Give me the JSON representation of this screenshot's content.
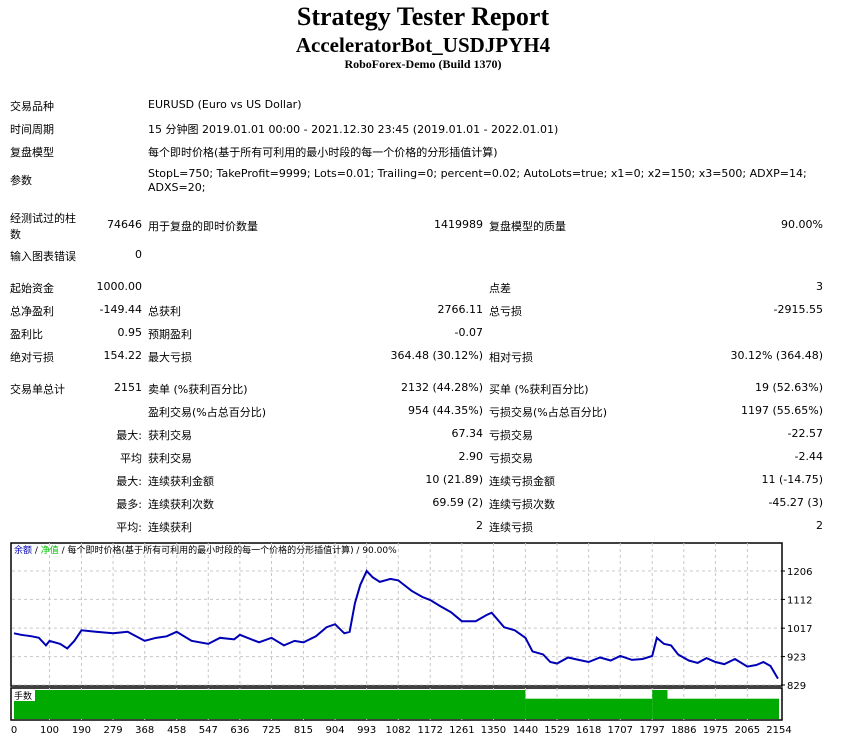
{
  "header": {
    "title": "Strategy Tester Report",
    "subtitle": "AcceleratorBot_USDJPYH4",
    "server": "RoboForex-Demo (Build 1370)"
  },
  "info": [
    {
      "label": "交易品种",
      "value": "EURUSD (Euro vs US Dollar)"
    },
    {
      "label": "时间周期",
      "value": "15 分钟图 2019.01.01 00:00 - 2021.12.30 23:45 (2019.01.01 - 2022.01.01)"
    },
    {
      "label": "复盘模型",
      "value": "每个即时价格(基于所有可利用的最小时段的每一个价格的分形插值计算)"
    },
    {
      "label": "参数",
      "value": "StopL=750; TakeProfit=9999; Lots=0.01; Trailing=0; percent=0.02; AutoLots=true; x1=0; x2=150; x3=500; ADXP=14;",
      "value2": "ADXS=20;"
    }
  ],
  "bars": {
    "label1": "经测试过的柱",
    "label2": "数",
    "value": "74646",
    "ticks_label": "用于复盘的即时价数量",
    "ticks_value": "1419989",
    "quality_label": "复盘模型的质量",
    "quality_value": "90.00%"
  },
  "errors": {
    "label": "输入图表错误",
    "value": "0"
  },
  "stats": [
    {
      "l1": "起始资金",
      "v1": "1000.00",
      "l2": "",
      "v2": "",
      "l3": "点差",
      "v3": "3"
    },
    {
      "l1": "总净盈利",
      "v1": "-149.44",
      "l2": "总获利",
      "v2": "2766.11",
      "l3": "总亏损",
      "v3": "-2915.55"
    },
    {
      "l1": "盈利比",
      "v1": "0.95",
      "l2": "预期盈利",
      "v2": "-0.07",
      "l3": "",
      "v3": ""
    },
    {
      "l1": "绝对亏损",
      "v1": "154.22",
      "l2": "最大亏损",
      "v2": "364.48 (30.12%)",
      "l3": "相对亏损",
      "v3": "30.12% (364.48)"
    }
  ],
  "trades": [
    {
      "l1": "交易单总计",
      "v1": "2151",
      "l2": "卖单 (%获利百分比)",
      "v2": "2132 (44.28%)",
      "l3": "买单 (%获利百分比)",
      "v3": "19 (52.63%)"
    },
    {
      "l1": "",
      "v1": "",
      "l2": "盈利交易(%占总百分比)",
      "v2": "954 (44.35%)",
      "l3": "亏损交易(%占总百分比)",
      "v3": "1197 (55.65%)"
    },
    {
      "l1": "",
      "v1": "最大:",
      "l2": "获利交易",
      "v2": "67.34",
      "l3": "亏损交易",
      "v3": "-22.57"
    },
    {
      "l1": "",
      "v1": "平均",
      "l2": "获利交易",
      "v2": "2.90",
      "l3": "亏损交易",
      "v3": "-2.44"
    },
    {
      "l1": "",
      "v1": "最大:",
      "l2": "连续获利金额",
      "v2": "10 (21.89)",
      "l3": "连续亏损金额",
      "v3": "11 (-14.75)"
    },
    {
      "l1": "",
      "v1": "最多:",
      "l2": "连续获利次数",
      "v2": "69.59 (2)",
      "l3": "连续亏损次数",
      "v3": "-45.27 (3)"
    },
    {
      "l1": "",
      "v1": "平均:",
      "l2": "连续获利",
      "v2": "2",
      "l3": "连续亏损",
      "v3": "2"
    }
  ],
  "chart_data": {
    "type": "line",
    "legend": {
      "balance": "余额",
      "sep1": " / ",
      "equity": "净值",
      "rest": " / 每个即时价格(基于所有可利用的最小时段的每一个价格的分形插值计算) / 90.00%"
    },
    "volume_label": "手数",
    "y_ticks": [
      1206,
      1112,
      1017,
      923,
      829
    ],
    "x_ticks": [
      0,
      100,
      190,
      279,
      368,
      458,
      547,
      636,
      725,
      815,
      904,
      993,
      1082,
      1172,
      1261,
      1350,
      1440,
      1529,
      1618,
      1707,
      1797,
      1886,
      1975,
      2065,
      2154
    ],
    "xlim": [
      0,
      2160
    ],
    "ylim": [
      829,
      1240
    ],
    "grid": true,
    "colors": {
      "balance": "#0000b4",
      "volume": "#00aa00",
      "equity": "#00c000"
    },
    "balance": [
      [
        0,
        1000
      ],
      [
        20,
        995
      ],
      [
        50,
        990
      ],
      [
        70,
        985
      ],
      [
        90,
        960
      ],
      [
        100,
        975
      ],
      [
        130,
        965
      ],
      [
        150,
        950
      ],
      [
        170,
        975
      ],
      [
        190,
        1010
      ],
      [
        230,
        1005
      ],
      [
        279,
        1000
      ],
      [
        320,
        1005
      ],
      [
        368,
        975
      ],
      [
        400,
        985
      ],
      [
        430,
        990
      ],
      [
        458,
        1005
      ],
      [
        500,
        975
      ],
      [
        547,
        965
      ],
      [
        580,
        985
      ],
      [
        620,
        980
      ],
      [
        636,
        995
      ],
      [
        690,
        970
      ],
      [
        725,
        985
      ],
      [
        760,
        960
      ],
      [
        790,
        975
      ],
      [
        815,
        970
      ],
      [
        850,
        990
      ],
      [
        880,
        1020
      ],
      [
        904,
        1030
      ],
      [
        930,
        1000
      ],
      [
        945,
        1005
      ],
      [
        960,
        1100
      ],
      [
        975,
        1160
      ],
      [
        993,
        1206
      ],
      [
        1010,
        1185
      ],
      [
        1030,
        1170
      ],
      [
        1060,
        1180
      ],
      [
        1082,
        1175
      ],
      [
        1120,
        1140
      ],
      [
        1150,
        1120
      ],
      [
        1172,
        1110
      ],
      [
        1200,
        1090
      ],
      [
        1230,
        1070
      ],
      [
        1261,
        1040
      ],
      [
        1300,
        1040
      ],
      [
        1330,
        1060
      ],
      [
        1345,
        1068
      ],
      [
        1380,
        1020
      ],
      [
        1410,
        1010
      ],
      [
        1440,
        985
      ],
      [
        1460,
        940
      ],
      [
        1490,
        930
      ],
      [
        1510,
        905
      ],
      [
        1529,
        900
      ],
      [
        1560,
        920
      ],
      [
        1590,
        912
      ],
      [
        1618,
        905
      ],
      [
        1650,
        920
      ],
      [
        1680,
        910
      ],
      [
        1707,
        925
      ],
      [
        1740,
        912
      ],
      [
        1770,
        915
      ],
      [
        1797,
        925
      ],
      [
        1810,
        985
      ],
      [
        1830,
        965
      ],
      [
        1850,
        960
      ],
      [
        1870,
        930
      ],
      [
        1900,
        910
      ],
      [
        1925,
        902
      ],
      [
        1950,
        918
      ],
      [
        1975,
        905
      ],
      [
        2000,
        898
      ],
      [
        2030,
        915
      ],
      [
        2065,
        890
      ],
      [
        2090,
        895
      ],
      [
        2110,
        905
      ],
      [
        2130,
        892
      ],
      [
        2151,
        850
      ]
    ],
    "volume": [
      [
        0,
        1440,
        1
      ],
      [
        1440,
        1797,
        0.7
      ],
      [
        1797,
        1840,
        1
      ],
      [
        1840,
        2154,
        0.7
      ]
    ]
  }
}
